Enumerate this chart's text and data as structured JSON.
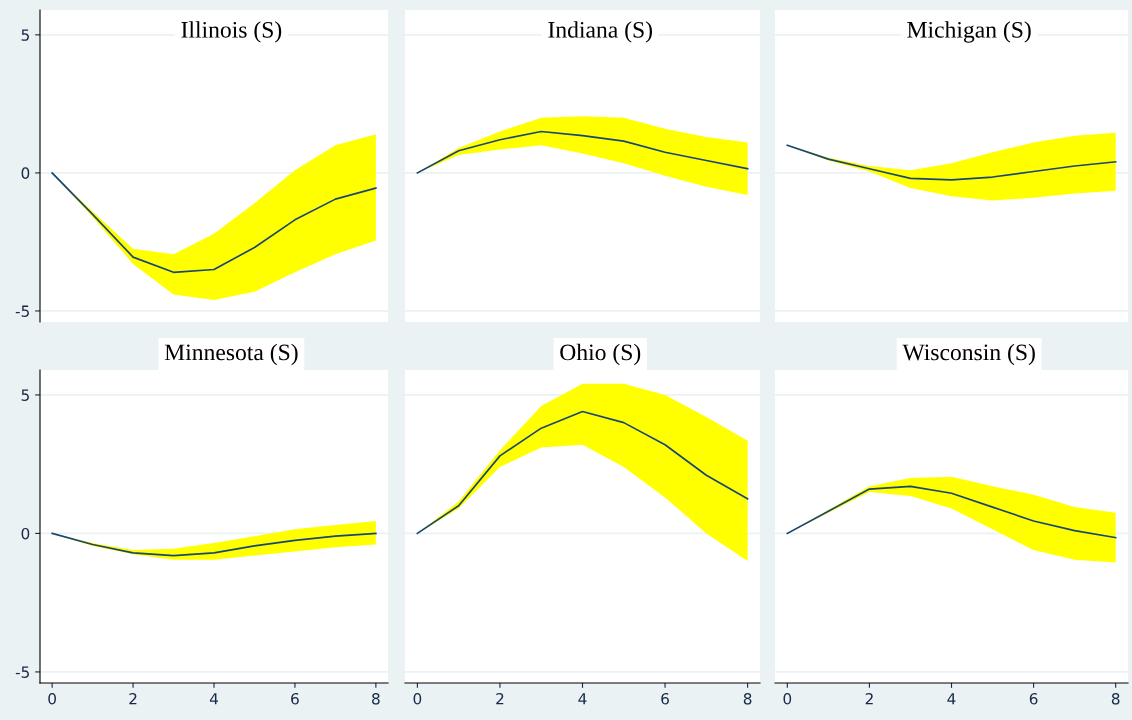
{
  "chart_data": [
    {
      "type": "line",
      "title": "Illinois (S)",
      "x": [
        0,
        1,
        2,
        3,
        4,
        5,
        6,
        7,
        8
      ],
      "xlim": [
        -0.3,
        8.3
      ],
      "xticks": [
        0,
        2,
        4,
        6,
        8
      ],
      "ylim": [
        -5.4,
        5.9
      ],
      "yticks": [
        -5,
        0,
        5
      ],
      "tick_labels": "y",
      "grid": "y",
      "series": [
        {
          "color": "#1a476f",
          "values": [
            0,
            -1.5,
            -3.05,
            -3.6,
            -3.5,
            -2.7,
            -1.7,
            -0.95,
            -0.55
          ],
          "upper": [
            0,
            -1.4,
            -2.75,
            -2.95,
            -2.2,
            -1.1,
            0.1,
            1.0,
            1.4
          ],
          "lower": [
            0,
            -1.6,
            -3.3,
            -4.4,
            -4.6,
            -4.3,
            -3.6,
            -2.95,
            -2.45
          ]
        }
      ]
    },
    {
      "type": "line",
      "title": "Indiana (S)",
      "x": [
        0,
        1,
        2,
        3,
        4,
        5,
        6,
        7,
        8
      ],
      "xlim": [
        -0.3,
        8.3
      ],
      "xticks": [
        0,
        2,
        4,
        6,
        8
      ],
      "ylim": [
        -5.4,
        5.9
      ],
      "yticks": [
        -5,
        0,
        5
      ],
      "tick_labels": false,
      "grid": "y",
      "series": [
        {
          "color": "#1a476f",
          "values": [
            0,
            0.8,
            1.2,
            1.5,
            1.35,
            1.15,
            0.75,
            0.45,
            0.15
          ],
          "upper": [
            0,
            0.9,
            1.5,
            2.0,
            2.05,
            2.0,
            1.6,
            1.3,
            1.1
          ],
          "lower": [
            0,
            0.65,
            0.85,
            1.0,
            0.7,
            0.35,
            -0.1,
            -0.5,
            -0.8
          ]
        }
      ]
    },
    {
      "type": "line",
      "title": "Michigan (S)",
      "x": [
        0,
        1,
        2,
        3,
        4,
        5,
        6,
        7,
        8
      ],
      "xlim": [
        -0.3,
        8.3
      ],
      "xticks": [
        0,
        2,
        4,
        6,
        8
      ],
      "ylim": [
        -5.4,
        5.9
      ],
      "yticks": [
        -5,
        0,
        5
      ],
      "tick_labels": false,
      "grid": "y",
      "series": [
        {
          "color": "#1a476f",
          "values": [
            1.0,
            0.5,
            0.15,
            -0.2,
            -0.25,
            -0.15,
            0.05,
            0.25,
            0.4
          ],
          "upper": [
            1.0,
            0.55,
            0.25,
            0.1,
            0.35,
            0.75,
            1.1,
            1.35,
            1.45
          ],
          "lower": [
            1.0,
            0.45,
            0.05,
            -0.55,
            -0.85,
            -1.0,
            -0.9,
            -0.75,
            -0.65
          ]
        }
      ]
    },
    {
      "type": "line",
      "title": "Minnesota (S)",
      "x": [
        0,
        1,
        2,
        3,
        4,
        5,
        6,
        7,
        8
      ],
      "xlim": [
        -0.3,
        8.3
      ],
      "xticks": [
        0,
        2,
        4,
        6,
        8
      ],
      "ylim": [
        -5.4,
        5.9
      ],
      "yticks": [
        -5,
        0,
        5
      ],
      "grid": "y",
      "series": [
        {
          "color": "#1a476f",
          "values": [
            0,
            -0.4,
            -0.7,
            -0.8,
            -0.7,
            -0.45,
            -0.25,
            -0.1,
            0
          ],
          "upper": [
            0,
            -0.35,
            -0.6,
            -0.55,
            -0.35,
            -0.1,
            0.15,
            0.3,
            0.45
          ],
          "lower": [
            0,
            -0.45,
            -0.75,
            -0.95,
            -0.95,
            -0.8,
            -0.65,
            -0.5,
            -0.4
          ]
        }
      ]
    },
    {
      "type": "line",
      "title": "Ohio (S)",
      "x": [
        0,
        1,
        2,
        3,
        4,
        5,
        6,
        7,
        8
      ],
      "xlim": [
        -0.3,
        8.3
      ],
      "xticks": [
        0,
        2,
        4,
        6,
        8
      ],
      "ylim": [
        -5.4,
        5.9
      ],
      "yticks": [
        -5,
        0,
        5
      ],
      "tick_labels": "x",
      "grid": "y",
      "series": [
        {
          "color": "#1a476f",
          "values": [
            0,
            1.0,
            2.8,
            3.8,
            4.4,
            4.0,
            3.2,
            2.1,
            1.25
          ],
          "upper": [
            0,
            1.15,
            3.0,
            4.6,
            5.4,
            5.4,
            5.0,
            4.2,
            3.35
          ],
          "lower": [
            0,
            0.9,
            2.4,
            3.1,
            3.2,
            2.4,
            1.3,
            0.0,
            -1.0
          ]
        }
      ]
    },
    {
      "type": "line",
      "title": "Wisconsin (S)",
      "x": [
        0,
        1,
        2,
        3,
        4,
        5,
        6,
        7,
        8
      ],
      "xlim": [
        -0.3,
        8.3
      ],
      "xticks": [
        0,
        2,
        4,
        6,
        8
      ],
      "ylim": [
        -5.4,
        5.9
      ],
      "yticks": [
        -5,
        0,
        5
      ],
      "tick_labels": "x",
      "grid": "y",
      "series": [
        {
          "color": "#1a476f",
          "values": [
            0,
            0.8,
            1.6,
            1.7,
            1.45,
            0.95,
            0.45,
            0.1,
            -0.15
          ],
          "upper": [
            0,
            0.85,
            1.7,
            2.0,
            2.05,
            1.7,
            1.4,
            0.95,
            0.75
          ],
          "lower": [
            0,
            0.75,
            1.5,
            1.35,
            0.9,
            0.15,
            -0.6,
            -0.95,
            -1.05
          ]
        }
      ]
    }
  ]
}
